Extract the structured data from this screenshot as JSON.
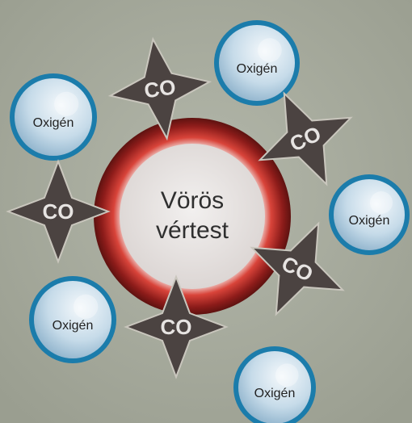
{
  "center": {
    "lines": [
      "Vörös",
      "vértest"
    ]
  },
  "oxygen": [
    "Oxigén",
    "Oxigén",
    "Oxigén",
    "Oxigén",
    "Oxigén"
  ],
  "carbon_monoxide": [
    "CO",
    "CO",
    "CO",
    "CO",
    "CO"
  ]
}
